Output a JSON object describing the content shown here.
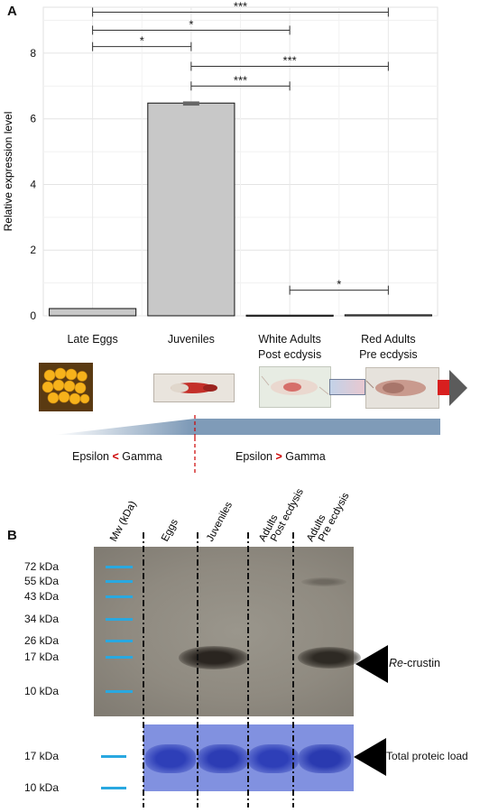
{
  "panel_a": {
    "label": "A",
    "chart_data": {
      "type": "bar",
      "categories": [
        "Late Eggs",
        "Juveniles",
        "White Adults\nPost ecdysis",
        "Red Adults\nPre ecdysis"
      ],
      "values": [
        0.22,
        6.48,
        0.02,
        0.03
      ],
      "errors": [
        0.0,
        0.05,
        0.0,
        0.0
      ],
      "ylabel": "Relative expression level",
      "ylim": [
        0,
        9.4
      ],
      "yticks": [
        0,
        2,
        4,
        6,
        8
      ],
      "grid": true,
      "significance": [
        {
          "from": 0,
          "to": 3,
          "label": "***",
          "y": 9.25
        },
        {
          "from": 0,
          "to": 2,
          "label": "*",
          "y": 8.7
        },
        {
          "from": 0,
          "to": 1,
          "label": "*",
          "y": 8.2
        },
        {
          "from": 1,
          "to": 3,
          "label": "***",
          "y": 7.6
        },
        {
          "from": 1,
          "to": 2,
          "label": "***",
          "y": 7.0
        },
        {
          "from": 2,
          "to": 3,
          "label": "*",
          "y": 0.78
        }
      ]
    },
    "ratio_left": {
      "a": "Epsilon",
      "sym": "<",
      "b": "Gamma"
    },
    "ratio_right": {
      "a": "Epsilon",
      "sym": ">",
      "b": "Gamma"
    }
  },
  "panel_b": {
    "label": "B",
    "lane_headers": [
      "Mw (kDa)",
      "Eggs",
      "Juveniles",
      "Adults\nPost ecdysis",
      "Adults\nPre ecdysis"
    ],
    "mw_markers": [
      "72 kDa",
      "55 kDa",
      "43 kDa",
      "34 kDa",
      "26 kDa",
      "17 kDa",
      "10 kDa"
    ],
    "loading_markers": [
      "17 kDa",
      "10 kDa"
    ],
    "crustin_label_italic": "Re",
    "crustin_label_rest": "-crustin",
    "load_label": "Total proteic load"
  },
  "colors": {
    "bar_fill": "#c8c8c8",
    "marker_blue": "#29a8e0",
    "significance_red": "#cc0000",
    "gradient_blue": "#7f9bb8",
    "gel_bg": "#8f8a7f",
    "coomassie": "#4a5ed0"
  }
}
